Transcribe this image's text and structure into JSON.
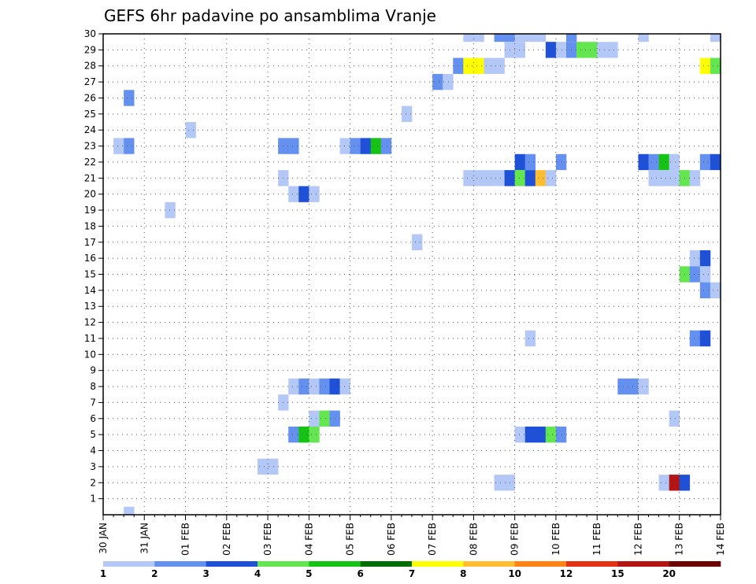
{
  "chart_data": {
    "type": "heatmap",
    "title": "GEFS 6hr padavine po ansamblima Vranje",
    "members": [
      1,
      2,
      3,
      4,
      5,
      6,
      7,
      8,
      9,
      10,
      11,
      12,
      13,
      14,
      15,
      16,
      17,
      18,
      19,
      20,
      21,
      22,
      23,
      24,
      25,
      26,
      27,
      28,
      29,
      30
    ],
    "x_tick_labels": [
      "30 JAN",
      "31 JAN",
      "01 FEB",
      "02 FEB",
      "03 FEB",
      "04 FEB",
      "05 FEB",
      "06 FEB",
      "07 FEB",
      "08 FEB",
      "09 FEB",
      "10 FEB",
      "11 FEB",
      "12 FEB",
      "13 FEB",
      "14 FEB"
    ],
    "time_step_hours": 6,
    "steps": 60,
    "grid": true,
    "levels": [
      1,
      2,
      3,
      4,
      5,
      6,
      7,
      8,
      10,
      12,
      15,
      20
    ],
    "level_labels": [
      "1",
      "2",
      "3",
      "4",
      "5",
      "6",
      "7",
      "8",
      "10",
      "12",
      "15",
      "20"
    ],
    "colors": [
      "#b4c8f8",
      "#6490f0",
      "#1e50d8",
      "#64e650",
      "#14c314",
      "#006e00",
      "#ffff00",
      "#ffbe32",
      "#ff8214",
      "#e63214",
      "#b41414",
      "#6e0000"
    ],
    "cells": [
      {
        "member": 30,
        "step": 35,
        "value": 1.8
      },
      {
        "member": 30,
        "step": 36,
        "value": 1.5
      },
      {
        "member": 30,
        "step": 38,
        "value": 2
      },
      {
        "member": 30,
        "step": 39,
        "value": 2
      },
      {
        "member": 30,
        "step": 40,
        "value": 1.5
      },
      {
        "member": 30,
        "step": 41,
        "value": 1.5
      },
      {
        "member": 30,
        "step": 42,
        "value": 1.5
      },
      {
        "member": 30,
        "step": 45,
        "value": 2
      },
      {
        "member": 30,
        "step": 52,
        "value": 1.5
      },
      {
        "member": 30,
        "step": 59,
        "value": 1.5
      },
      {
        "member": 29,
        "step": 39,
        "value": 1.5
      },
      {
        "member": 29,
        "step": 40,
        "value": 1.5
      },
      {
        "member": 29,
        "step": 43,
        "value": 3
      },
      {
        "member": 29,
        "step": 44,
        "value": 1.5
      },
      {
        "member": 29,
        "step": 45,
        "value": 2
      },
      {
        "member": 29,
        "step": 46,
        "value": 4
      },
      {
        "member": 29,
        "step": 47,
        "value": 4
      },
      {
        "member": 29,
        "step": 48,
        "value": 1.5
      },
      {
        "member": 29,
        "step": 49,
        "value": 1.5
      },
      {
        "member": 28,
        "step": 34,
        "value": 2
      },
      {
        "member": 28,
        "step": 35,
        "value": 7
      },
      {
        "member": 28,
        "step": 36,
        "value": 7
      },
      {
        "member": 28,
        "step": 37,
        "value": 1.5
      },
      {
        "member": 28,
        "step": 38,
        "value": 1.5
      },
      {
        "member": 28,
        "step": 58,
        "value": 7
      },
      {
        "member": 28,
        "step": 59,
        "value": 4
      },
      {
        "member": 27,
        "step": 32,
        "value": 2
      },
      {
        "member": 27,
        "step": 33,
        "value": 1.5
      },
      {
        "member": 26,
        "step": 2,
        "value": 2
      },
      {
        "member": 25,
        "step": 29,
        "value": 1.5
      },
      {
        "member": 24,
        "step": 8,
        "value": 1.5
      },
      {
        "member": 23,
        "step": 1,
        "value": 1.5
      },
      {
        "member": 23,
        "step": 2,
        "value": 2
      },
      {
        "member": 23,
        "step": 17,
        "value": 2
      },
      {
        "member": 23,
        "step": 18,
        "value": 2
      },
      {
        "member": 23,
        "step": 23,
        "value": 1.5
      },
      {
        "member": 23,
        "step": 24,
        "value": 2
      },
      {
        "member": 23,
        "step": 25,
        "value": 3
      },
      {
        "member": 23,
        "step": 26,
        "value": 5
      },
      {
        "member": 23,
        "step": 27,
        "value": 2
      },
      {
        "member": 22,
        "step": 40,
        "value": 3
      },
      {
        "member": 22,
        "step": 41,
        "value": 2
      },
      {
        "member": 22,
        "step": 44,
        "value": 2
      },
      {
        "member": 22,
        "step": 52,
        "value": 3
      },
      {
        "member": 22,
        "step": 53,
        "value": 2
      },
      {
        "member": 22,
        "step": 54,
        "value": 5
      },
      {
        "member": 22,
        "step": 55,
        "value": 1.5
      },
      {
        "member": 22,
        "step": 58,
        "value": 2
      },
      {
        "member": 22,
        "step": 59,
        "value": 3
      },
      {
        "member": 21,
        "step": 17,
        "value": 1.5
      },
      {
        "member": 21,
        "step": 35,
        "value": 1.5
      },
      {
        "member": 21,
        "step": 36,
        "value": 1.5
      },
      {
        "member": 21,
        "step": 37,
        "value": 1.5
      },
      {
        "member": 21,
        "step": 38,
        "value": 1.5
      },
      {
        "member": 21,
        "step": 39,
        "value": 3
      },
      {
        "member": 21,
        "step": 40,
        "value": 4
      },
      {
        "member": 21,
        "step": 41,
        "value": 3
      },
      {
        "member": 21,
        "step": 42,
        "value": 8
      },
      {
        "member": 21,
        "step": 43,
        "value": 1.5
      },
      {
        "member": 21,
        "step": 53,
        "value": 1.5
      },
      {
        "member": 21,
        "step": 54,
        "value": 1.5
      },
      {
        "member": 21,
        "step": 55,
        "value": 1.5
      },
      {
        "member": 21,
        "step": 56,
        "value": 4
      },
      {
        "member": 21,
        "step": 57,
        "value": 1.5
      },
      {
        "member": 20,
        "step": 18,
        "value": 1.5
      },
      {
        "member": 20,
        "step": 19,
        "value": 3
      },
      {
        "member": 20,
        "step": 20,
        "value": 1.5
      },
      {
        "member": 19,
        "step": 6,
        "value": 1.5
      },
      {
        "member": 17,
        "step": 30,
        "value": 1.5
      },
      {
        "member": 16,
        "step": 57,
        "value": 1.5
      },
      {
        "member": 16,
        "step": 58,
        "value": 3
      },
      {
        "member": 15,
        "step": 56,
        "value": 4
      },
      {
        "member": 15,
        "step": 57,
        "value": 2
      },
      {
        "member": 15,
        "step": 58,
        "value": 1.5
      },
      {
        "member": 14,
        "step": 58,
        "value": 2
      },
      {
        "member": 14,
        "step": 59,
        "value": 1.5
      },
      {
        "member": 11,
        "step": 41,
        "value": 1.5
      },
      {
        "member": 11,
        "step": 57,
        "value": 2
      },
      {
        "member": 11,
        "step": 58,
        "value": 3
      },
      {
        "member": 8,
        "step": 18,
        "value": 1.5
      },
      {
        "member": 8,
        "step": 19,
        "value": 2
      },
      {
        "member": 8,
        "step": 20,
        "value": 1.5
      },
      {
        "member": 8,
        "step": 21,
        "value": 2
      },
      {
        "member": 8,
        "step": 22,
        "value": 3
      },
      {
        "member": 8,
        "step": 23,
        "value": 1.5
      },
      {
        "member": 8,
        "step": 50,
        "value": 2
      },
      {
        "member": 8,
        "step": 51,
        "value": 2
      },
      {
        "member": 8,
        "step": 52,
        "value": 1.5
      },
      {
        "member": 7,
        "step": 17,
        "value": 1.5
      },
      {
        "member": 6,
        "step": 20,
        "value": 1.5
      },
      {
        "member": 6,
        "step": 21,
        "value": 4
      },
      {
        "member": 6,
        "step": 22,
        "value": 2
      },
      {
        "member": 6,
        "step": 55,
        "value": 1.5
      },
      {
        "member": 5,
        "step": 18,
        "value": 2
      },
      {
        "member": 5,
        "step": 19,
        "value": 5
      },
      {
        "member": 5,
        "step": 20,
        "value": 4
      },
      {
        "member": 5,
        "step": 40,
        "value": 1.5
      },
      {
        "member": 5,
        "step": 41,
        "value": 3
      },
      {
        "member": 5,
        "step": 42,
        "value": 3
      },
      {
        "member": 5,
        "step": 43,
        "value": 4
      },
      {
        "member": 5,
        "step": 44,
        "value": 2
      },
      {
        "member": 3,
        "step": 15,
        "value": 1.5
      },
      {
        "member": 3,
        "step": 16,
        "value": 1.5
      },
      {
        "member": 2,
        "step": 38,
        "value": 1.5
      },
      {
        "member": 2,
        "step": 39,
        "value": 1.5
      },
      {
        "member": 2,
        "step": 54,
        "value": 1.5
      },
      {
        "member": 2,
        "step": 55,
        "value": 15
      },
      {
        "member": 2,
        "step": 56,
        "value": 3
      },
      {
        "member": 0,
        "step": 2,
        "value": 1.5
      }
    ]
  }
}
